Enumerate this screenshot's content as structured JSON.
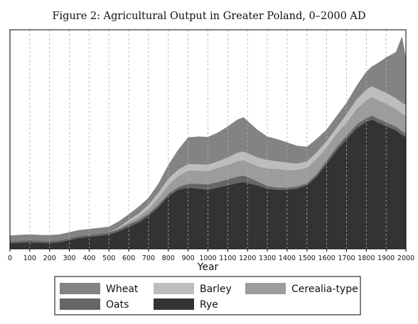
{
  "chart_data": {
    "type": "area",
    "stacked": true,
    "title": "Figure 2: Agricultural Output in Greater Poland, 0–2000 AD",
    "xlabel": "Year",
    "ylabel": "",
    "xlim": [
      0,
      2000
    ],
    "ylim": [
      0,
      1
    ],
    "y_ticks_shown": false,
    "grid": "vertical dashed lines at every 100 years",
    "x_ticks": [
      0,
      100,
      200,
      300,
      400,
      500,
      600,
      700,
      800,
      900,
      1000,
      1100,
      1200,
      1300,
      1400,
      1500,
      1600,
      1700,
      1800,
      1900,
      2000
    ],
    "x_tick_labels": [
      "0",
      "100",
      "200",
      "300",
      "400",
      "500",
      "600",
      "700",
      "800",
      "900",
      "1000",
      "1100",
      "1200",
      "1300",
      "1400",
      "1500",
      "1600",
      "1700",
      "1800",
      "1900",
      "2000"
    ],
    "x": [
      0,
      50,
      100,
      150,
      200,
      250,
      300,
      350,
      400,
      450,
      500,
      550,
      600,
      650,
      700,
      750,
      800,
      850,
      900,
      950,
      1000,
      1050,
      1100,
      1150,
      1180,
      1200,
      1250,
      1300,
      1350,
      1400,
      1450,
      1500,
      1550,
      1600,
      1650,
      1700,
      1750,
      1800,
      1830,
      1850,
      1900,
      1950,
      1980,
      2000
    ],
    "series": [
      {
        "name": "Rye",
        "color": "#333333",
        "values": [
          0.025,
          0.028,
          0.03,
          0.028,
          0.027,
          0.03,
          0.04,
          0.05,
          0.055,
          0.06,
          0.065,
          0.08,
          0.1,
          0.12,
          0.15,
          0.19,
          0.24,
          0.27,
          0.28,
          0.275,
          0.27,
          0.28,
          0.29,
          0.3,
          0.305,
          0.3,
          0.29,
          0.275,
          0.27,
          0.27,
          0.275,
          0.29,
          0.33,
          0.39,
          0.45,
          0.5,
          0.55,
          0.58,
          0.59,
          0.58,
          0.56,
          0.54,
          0.52,
          0.51
        ]
      },
      {
        "name": "Oats",
        "color": "#666666",
        "values": [
          0.01,
          0.01,
          0.01,
          0.01,
          0.01,
          0.01,
          0.01,
          0.01,
          0.01,
          0.01,
          0.01,
          0.01,
          0.012,
          0.012,
          0.012,
          0.012,
          0.012,
          0.012,
          0.018,
          0.022,
          0.025,
          0.025,
          0.028,
          0.03,
          0.03,
          0.028,
          0.018,
          0.012,
          0.01,
          0.01,
          0.01,
          0.01,
          0.012,
          0.014,
          0.015,
          0.016,
          0.017,
          0.018,
          0.018,
          0.018,
          0.018,
          0.018,
          0.018,
          0.018
        ]
      },
      {
        "name": "Cerealia-type",
        "color": "#9c9c9c",
        "values": [
          0.0,
          0.0,
          0.0,
          0.0,
          0.0,
          0.0,
          0.0,
          0.0,
          0.0,
          0.0,
          0.0,
          0.005,
          0.01,
          0.015,
          0.02,
          0.03,
          0.04,
          0.05,
          0.06,
          0.06,
          0.06,
          0.065,
          0.065,
          0.07,
          0.07,
          0.07,
          0.07,
          0.08,
          0.085,
          0.08,
          0.075,
          0.07,
          0.07,
          0.06,
          0.06,
          0.06,
          0.07,
          0.08,
          0.085,
          0.085,
          0.085,
          0.08,
          0.08,
          0.08
        ]
      },
      {
        "name": "Barley",
        "color": "#bdbdbd",
        "values": [
          0.0,
          0.0,
          0.0,
          0.0,
          0.0,
          0.0,
          0.0,
          0.0,
          0.0,
          0.0,
          0.0,
          0.005,
          0.01,
          0.015,
          0.02,
          0.025,
          0.03,
          0.03,
          0.03,
          0.03,
          0.03,
          0.03,
          0.035,
          0.04,
          0.04,
          0.04,
          0.04,
          0.04,
          0.035,
          0.035,
          0.03,
          0.03,
          0.03,
          0.03,
          0.03,
          0.04,
          0.045,
          0.05,
          0.05,
          0.05,
          0.05,
          0.05,
          0.05,
          0.05
        ]
      },
      {
        "name": "Wheat",
        "color": "#838383",
        "values": [
          0.025,
          0.025,
          0.025,
          0.025,
          0.025,
          0.025,
          0.025,
          0.025,
          0.025,
          0.025,
          0.025,
          0.025,
          0.025,
          0.03,
          0.03,
          0.04,
          0.06,
          0.09,
          0.12,
          0.125,
          0.125,
          0.13,
          0.14,
          0.15,
          0.155,
          0.145,
          0.125,
          0.105,
          0.1,
          0.09,
          0.08,
          0.065,
          0.06,
          0.05,
          0.05,
          0.05,
          0.06,
          0.08,
          0.09,
          0.11,
          0.16,
          0.21,
          0.3,
          0.21
        ]
      }
    ],
    "legend": {
      "placement": "bottom, below plot, boxed, 3 columns",
      "entries": [
        {
          "name": "Wheat",
          "color": "#838383"
        },
        {
          "name": "Barley",
          "color": "#bdbdbd"
        },
        {
          "name": "Cerealia-type",
          "color": "#9c9c9c"
        },
        {
          "name": "Oats",
          "color": "#666666"
        },
        {
          "name": "Rye",
          "color": "#333333"
        }
      ]
    }
  }
}
